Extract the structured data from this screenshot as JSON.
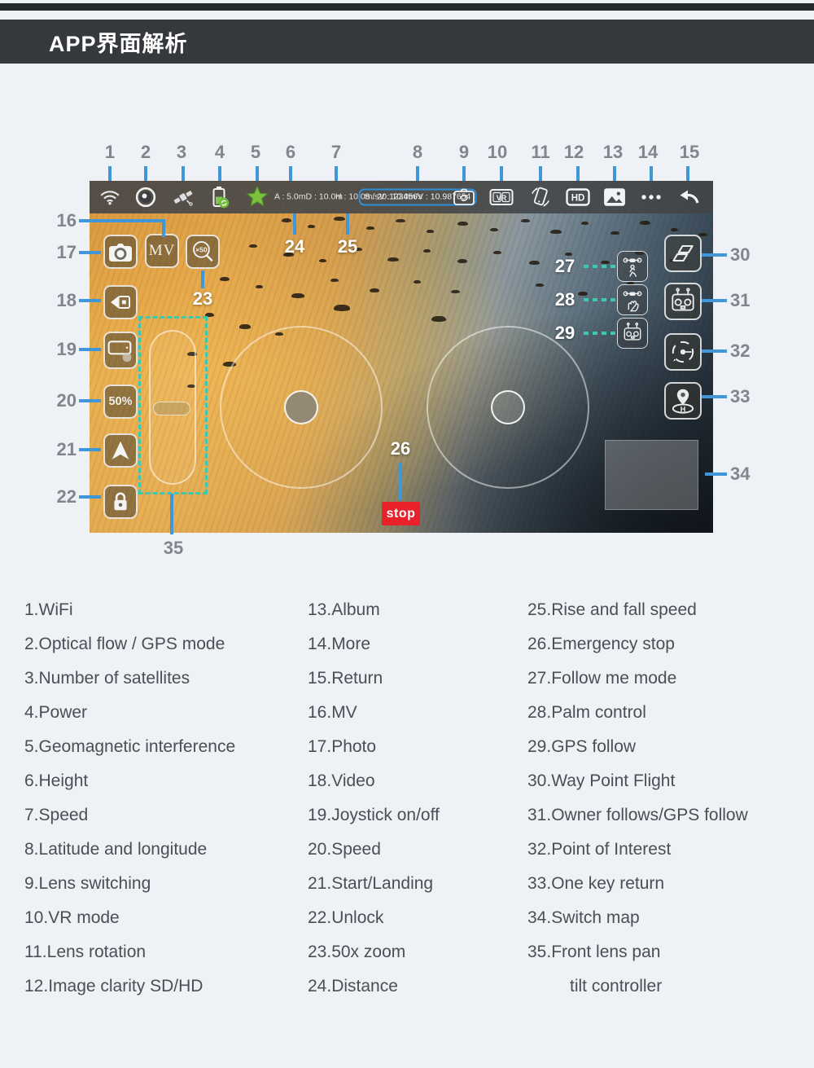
{
  "header": {
    "title": "APP界面解析"
  },
  "app": {
    "topbar": {
      "telemetry": {
        "a": "A : 5.0m",
        "d": "D : 10.0m",
        "h": "H : 10.0m/s",
        "v": "V : 10.0m/s",
        "s": "S : 20.123456",
        "v2": "V : 10.987654"
      },
      "vr_label": "VR",
      "hd_label": "HD"
    },
    "buttons": {
      "mv": "MV",
      "zoom_50": "×50",
      "speed": "50%",
      "stop": "stop",
      "one_key_return_h": "H"
    },
    "colors": {
      "accent_blue": "#3f97da",
      "teal": "#3cc9b0",
      "stop_red": "#e8212b",
      "battery_green": "#7cc13d"
    }
  },
  "callouts": {
    "top": [
      "1",
      "2",
      "3",
      "4",
      "5",
      "6",
      "7",
      "8",
      "9",
      "10",
      "11",
      "12",
      "13",
      "14",
      "15"
    ],
    "left": [
      "16",
      "17",
      "18",
      "19",
      "20",
      "21",
      "22"
    ],
    "right": [
      "30",
      "31",
      "32",
      "33",
      "34"
    ],
    "bottom": [
      "35"
    ],
    "inner": [
      "23",
      "24",
      "25",
      "26",
      "27",
      "28",
      "29"
    ]
  },
  "legend": {
    "col1": [
      "1.WiFi",
      "2.Optical flow / GPS mode",
      "3.Number of satellites",
      "4.Power",
      "5.Geomagnetic interference",
      "6.Height",
      "7.Speed",
      "8.Latitude and longitude",
      "9.Lens switching",
      "10.VR mode",
      "11.Lens rotation",
      "12.Image clarity SD/HD"
    ],
    "col2": [
      "13.Album",
      "14.More",
      "15.Return",
      "16.MV",
      "17.Photo",
      "18.Video",
      "19.Joystick on/off",
      "20.Speed",
      "21.Start/Landing",
      "22.Unlock",
      "23.50x zoom",
      "24.Distance"
    ],
    "col3": [
      "25.Rise and fall speed",
      "26.Emergency stop",
      "27.Follow me mode",
      "28.Palm control",
      "29.GPS follow",
      "30.Way Point Flight",
      "31.Owner follows/GPS follow",
      "32.Point of Interest",
      "33.One key return",
      "34.Switch map",
      "35.Front lens pan",
      "tilt controller"
    ]
  }
}
